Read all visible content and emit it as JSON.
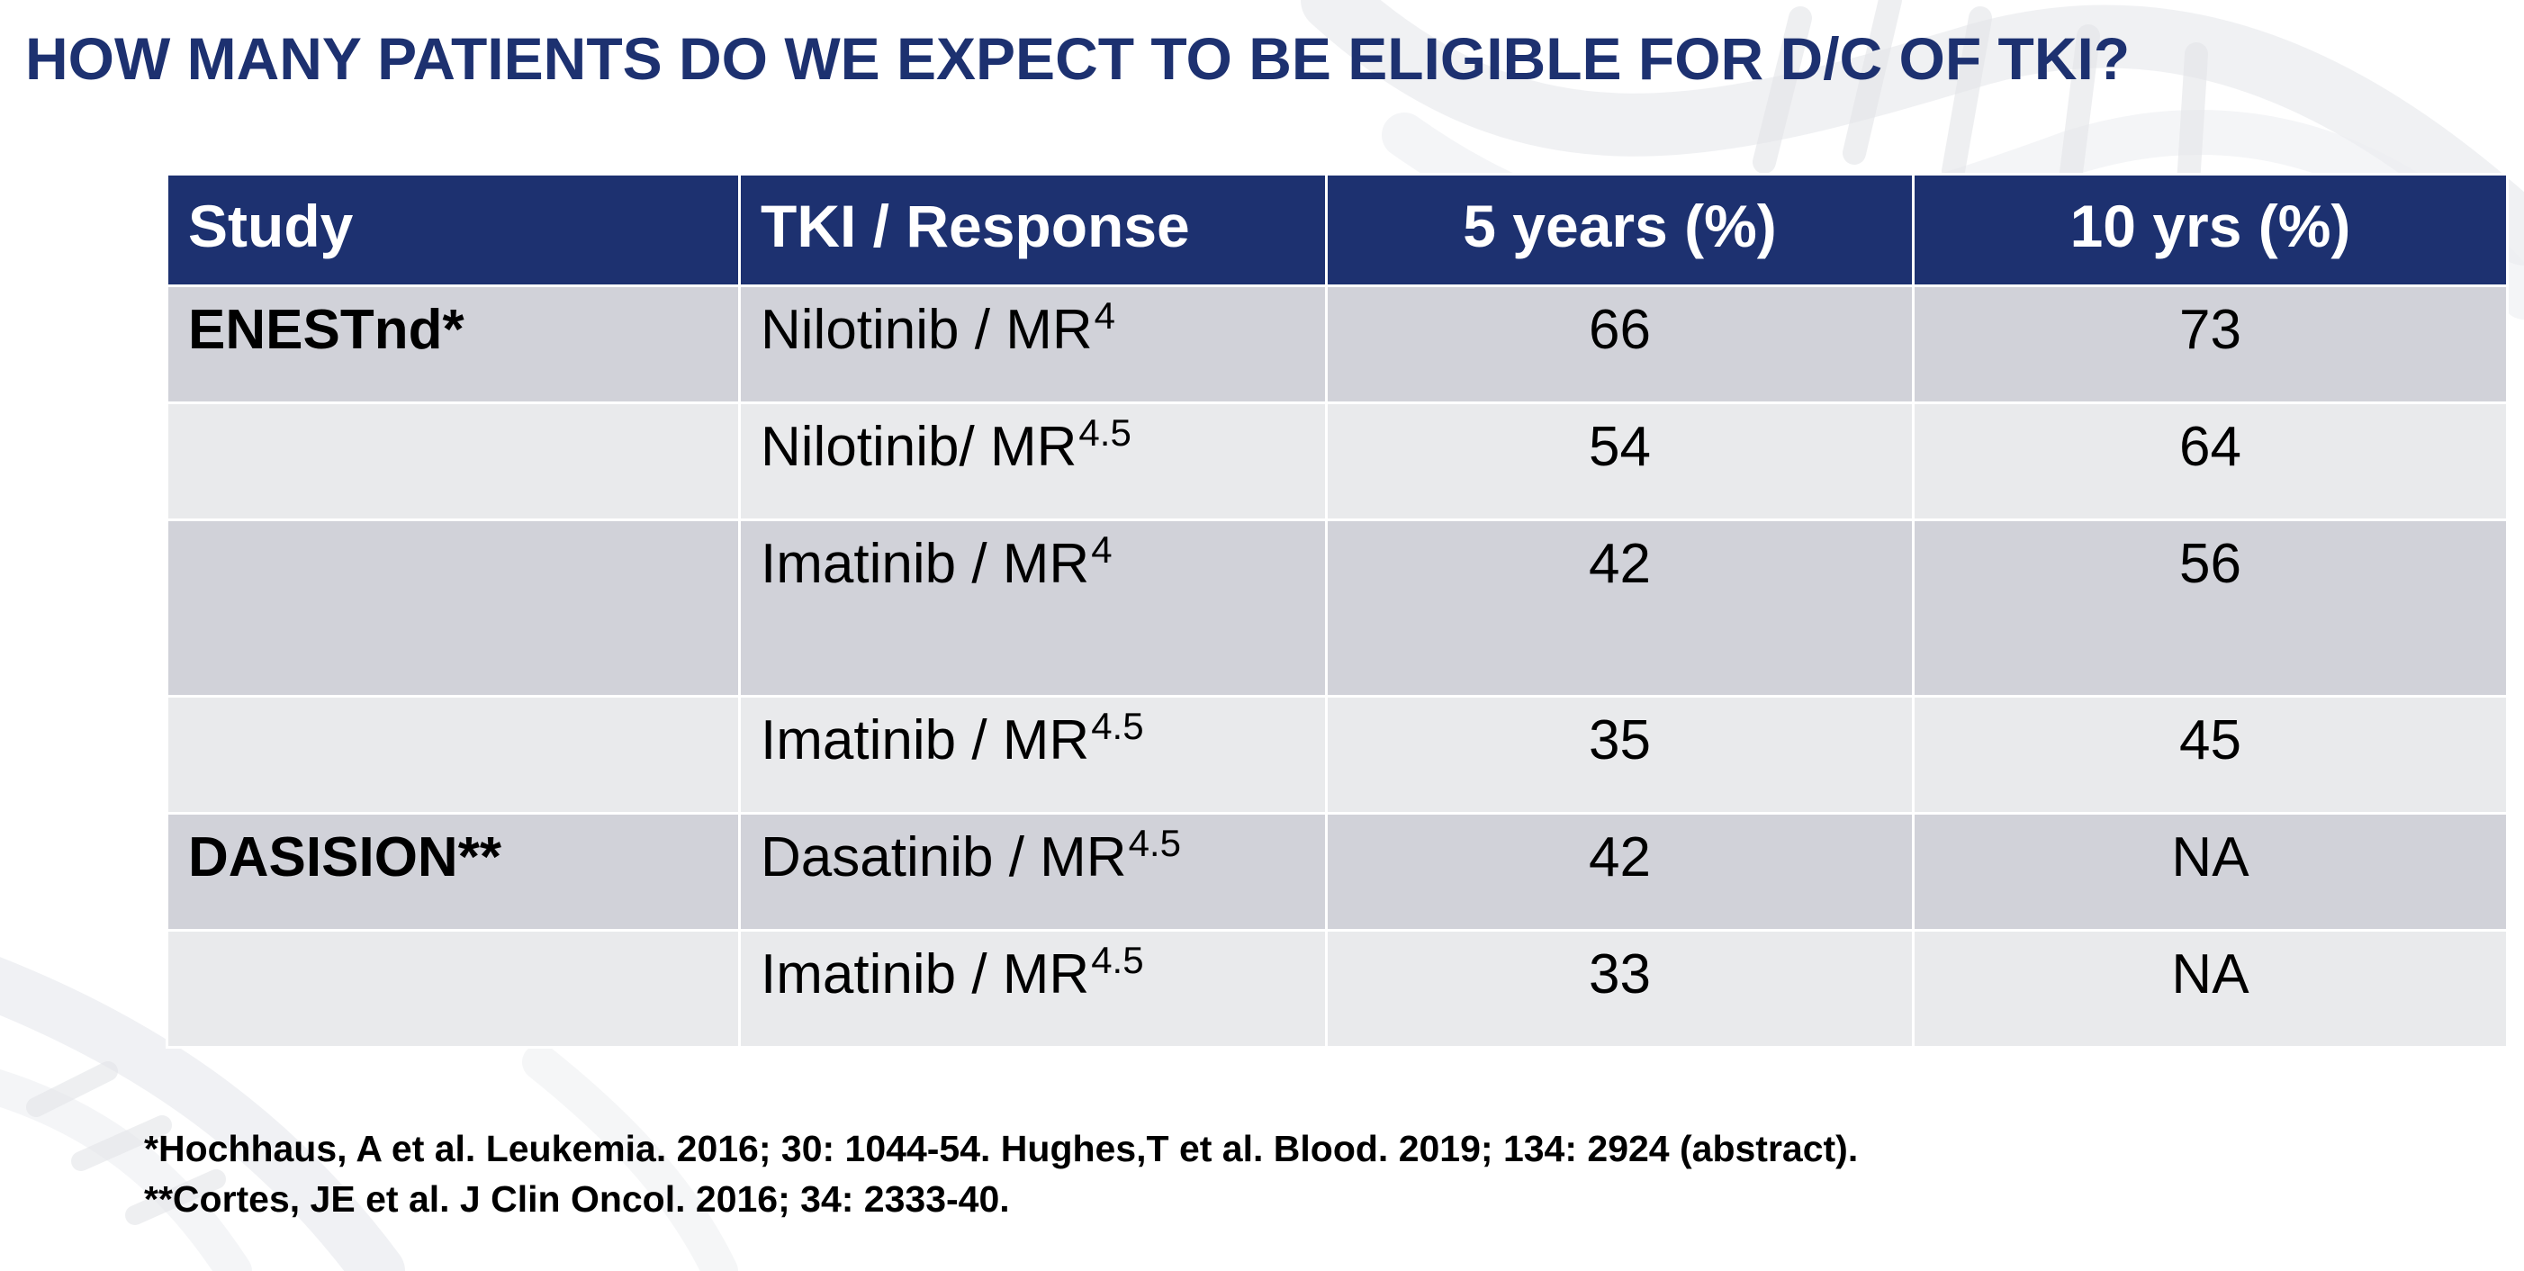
{
  "slide": {
    "title": "HOW MANY PATIENTS DO WE EXPECT TO BE ELIGIBLE FOR D/C OF TKI?"
  },
  "table": {
    "headers": {
      "study": "Study",
      "tki_response": "TKI / Response",
      "five_years": "5 years (%)",
      "ten_years": "10 yrs (%)"
    },
    "rows": [
      {
        "study": "ENESTnd*",
        "tki": "Nilotinib / MR",
        "sup": "4",
        "five": "66",
        "ten": "73"
      },
      {
        "study": "",
        "tki": "Nilotinib/ MR",
        "sup": "4.5",
        "five": "54",
        "ten": "64"
      },
      {
        "study": "",
        "tki": "Imatinib / MR",
        "sup": "4",
        "five": "42",
        "ten": "56"
      },
      {
        "study": "",
        "tki": "Imatinib / MR",
        "sup": "4.5",
        "five": "35",
        "ten": "45"
      },
      {
        "study": "DASISION**",
        "tki": "Dasatinib / MR",
        "sup": "4.5",
        "five": "42",
        "ten": "NA"
      },
      {
        "study": "",
        "tki": "Imatinib / MR",
        "sup": "4.5",
        "five": "33",
        "ten": "NA"
      }
    ]
  },
  "footnotes": [
    "*Hochhaus, A et al. Leukemia. 2016; 30: 1044-54.  Hughes,T et al. Blood. 2019; 134: 2924 (abstract).",
    "**Cortes, JE et al. J Clin Oncol. 2016; 34: 2333-40."
  ],
  "colors": {
    "title": "#1d3170",
    "header_background": "#1d3170",
    "row_dark": "#d1d2d9",
    "row_light": "#e9eaec"
  }
}
